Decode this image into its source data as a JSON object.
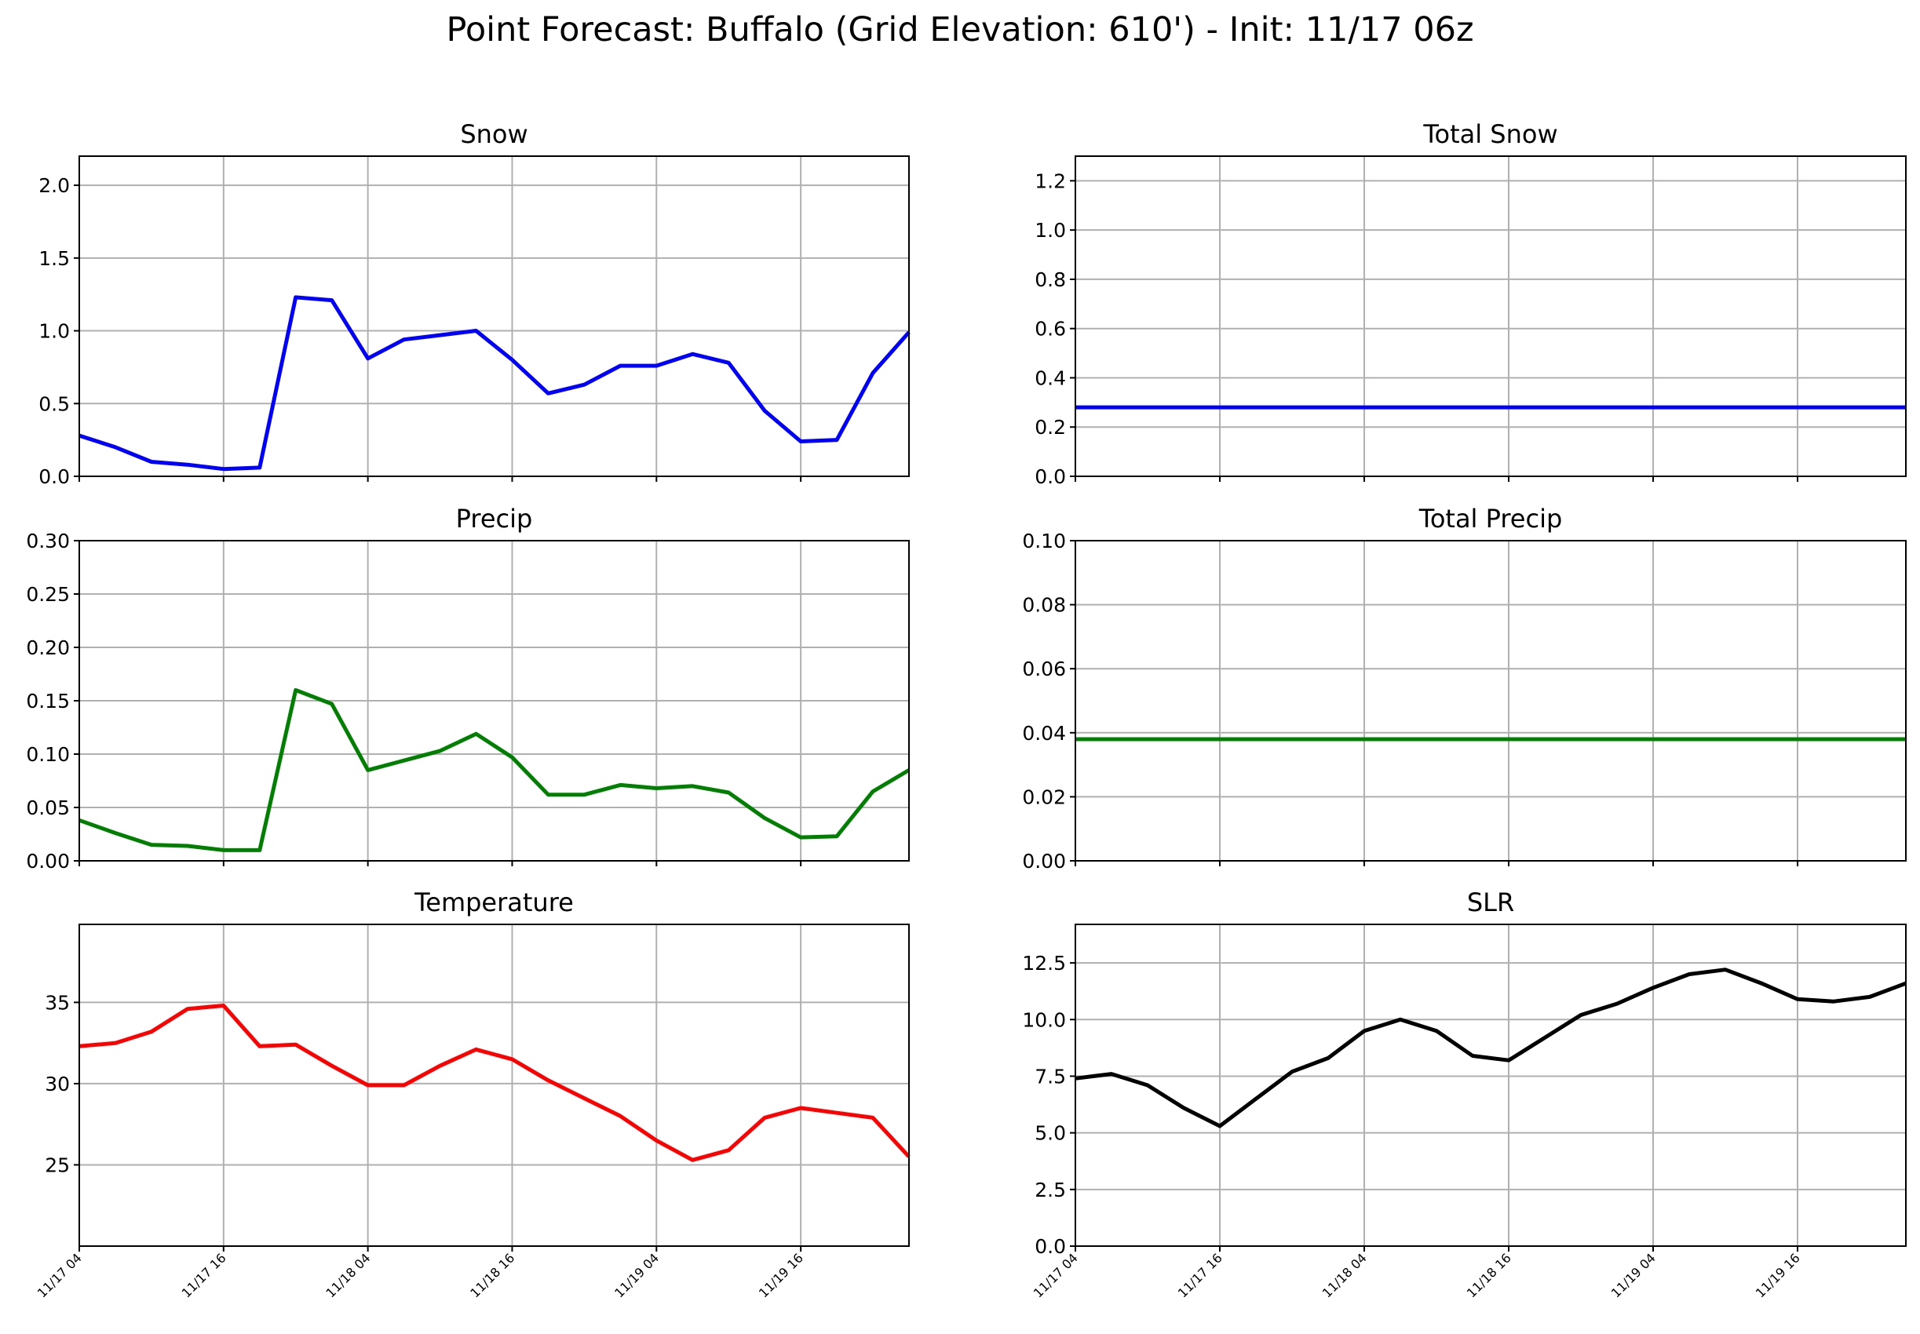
{
  "title": "Point Forecast: Buffalo (Grid Elevation: 610') - Init: 11/17 06z",
  "x_tick_labels": [
    "11/17 04",
    "11/17 16",
    "11/18 04",
    "11/18 16",
    "11/19 04",
    "11/19 16"
  ],
  "chart_data": [
    {
      "type": "line",
      "title": "Snow",
      "color": "#0000ff",
      "x_hours": [
        0,
        3,
        6,
        9,
        12,
        15,
        18,
        21,
        24,
        27,
        30,
        33,
        36,
        39,
        42,
        45,
        48,
        51,
        54,
        57,
        60,
        63,
        66,
        69
      ],
      "values": [
        0.28,
        0.2,
        0.1,
        0.08,
        0.05,
        0.06,
        1.23,
        1.21,
        0.81,
        0.94,
        0.97,
        1.0,
        0.8,
        0.57,
        0.63,
        0.76,
        0.76,
        0.84,
        0.78,
        0.45,
        0.24,
        0.25,
        0.71,
        0.99
      ],
      "yticks": [
        "0.0",
        "0.5",
        "1.0",
        "1.5",
        "2.0"
      ],
      "ytick_values": [
        0,
        0.5,
        1.0,
        1.5,
        2.0
      ],
      "ylim": [
        0,
        2.2
      ],
      "grid": true
    },
    {
      "type": "line",
      "title": "Total Snow",
      "color": "#0000ff",
      "x_hours": [
        0,
        69
      ],
      "values": [
        0.28,
        0.28
      ],
      "yticks": [
        "0.0",
        "0.2",
        "0.4",
        "0.6",
        "0.8",
        "1.0",
        "1.2"
      ],
      "ytick_values": [
        0,
        0.2,
        0.4,
        0.6,
        0.8,
        1.0,
        1.2
      ],
      "ylim": [
        0,
        1.3
      ],
      "grid": true
    },
    {
      "type": "line",
      "title": "Precip",
      "color": "#008000",
      "x_hours": [
        0,
        3,
        6,
        9,
        12,
        15,
        18,
        21,
        24,
        27,
        30,
        33,
        36,
        39,
        42,
        45,
        48,
        51,
        54,
        57,
        60,
        63,
        66,
        69
      ],
      "values": [
        0.038,
        0.026,
        0.015,
        0.014,
        0.01,
        0.01,
        0.16,
        0.147,
        0.085,
        0.094,
        0.103,
        0.119,
        0.097,
        0.062,
        0.062,
        0.071,
        0.068,
        0.07,
        0.064,
        0.04,
        0.022,
        0.023,
        0.065,
        0.085
      ],
      "yticks": [
        "0.00",
        "0.05",
        "0.10",
        "0.15",
        "0.20",
        "0.25",
        "0.30"
      ],
      "ytick_values": [
        0,
        0.05,
        0.1,
        0.15,
        0.2,
        0.25,
        0.3
      ],
      "ylim": [
        0,
        0.3
      ],
      "grid": true
    },
    {
      "type": "line",
      "title": "Total Precip",
      "color": "#008000",
      "x_hours": [
        0,
        69
      ],
      "values": [
        0.038,
        0.038
      ],
      "yticks": [
        "0.00",
        "0.02",
        "0.04",
        "0.06",
        "0.08",
        "0.10"
      ],
      "ytick_values": [
        0,
        0.02,
        0.04,
        0.06,
        0.08,
        0.1
      ],
      "ylim": [
        0,
        0.1
      ],
      "grid": true
    },
    {
      "type": "line",
      "title": "Temperature",
      "color": "#ff0000",
      "x_hours": [
        0,
        3,
        6,
        9,
        12,
        15,
        18,
        21,
        24,
        27,
        30,
        33,
        36,
        39,
        42,
        45,
        48,
        51,
        54,
        57,
        60,
        63,
        66,
        69
      ],
      "values": [
        32.3,
        32.5,
        33.2,
        34.6,
        34.8,
        32.3,
        32.4,
        31.1,
        29.9,
        29.9,
        31.1,
        32.1,
        31.5,
        30.2,
        29.1,
        28.0,
        26.5,
        25.3,
        25.9,
        27.9,
        28.5,
        28.2,
        27.9,
        25.5
      ],
      "yticks": [
        "25",
        "30",
        "35"
      ],
      "ytick_values": [
        25,
        30,
        35
      ],
      "ylim": [
        20,
        39.8
      ],
      "grid": true
    },
    {
      "type": "line",
      "title": "SLR",
      "color": "#000000",
      "x_hours": [
        0,
        3,
        6,
        9,
        12,
        15,
        18,
        21,
        24,
        27,
        30,
        33,
        36,
        39,
        42,
        45,
        48,
        51,
        54,
        57,
        60,
        63,
        66,
        69
      ],
      "values": [
        7.4,
        7.6,
        7.1,
        6.1,
        5.3,
        6.5,
        7.7,
        8.3,
        9.5,
        10.0,
        9.5,
        8.4,
        8.2,
        9.2,
        10.2,
        10.7,
        11.4,
        12.0,
        12.2,
        11.6,
        10.9,
        10.8,
        11.0,
        11.6
      ],
      "yticks": [
        "0.0",
        "2.5",
        "5.0",
        "7.5",
        "10.0",
        "12.5"
      ],
      "ytick_values": [
        0,
        2.5,
        5.0,
        7.5,
        10.0,
        12.5
      ],
      "ylim": [
        0,
        14.2
      ],
      "grid": true
    }
  ]
}
